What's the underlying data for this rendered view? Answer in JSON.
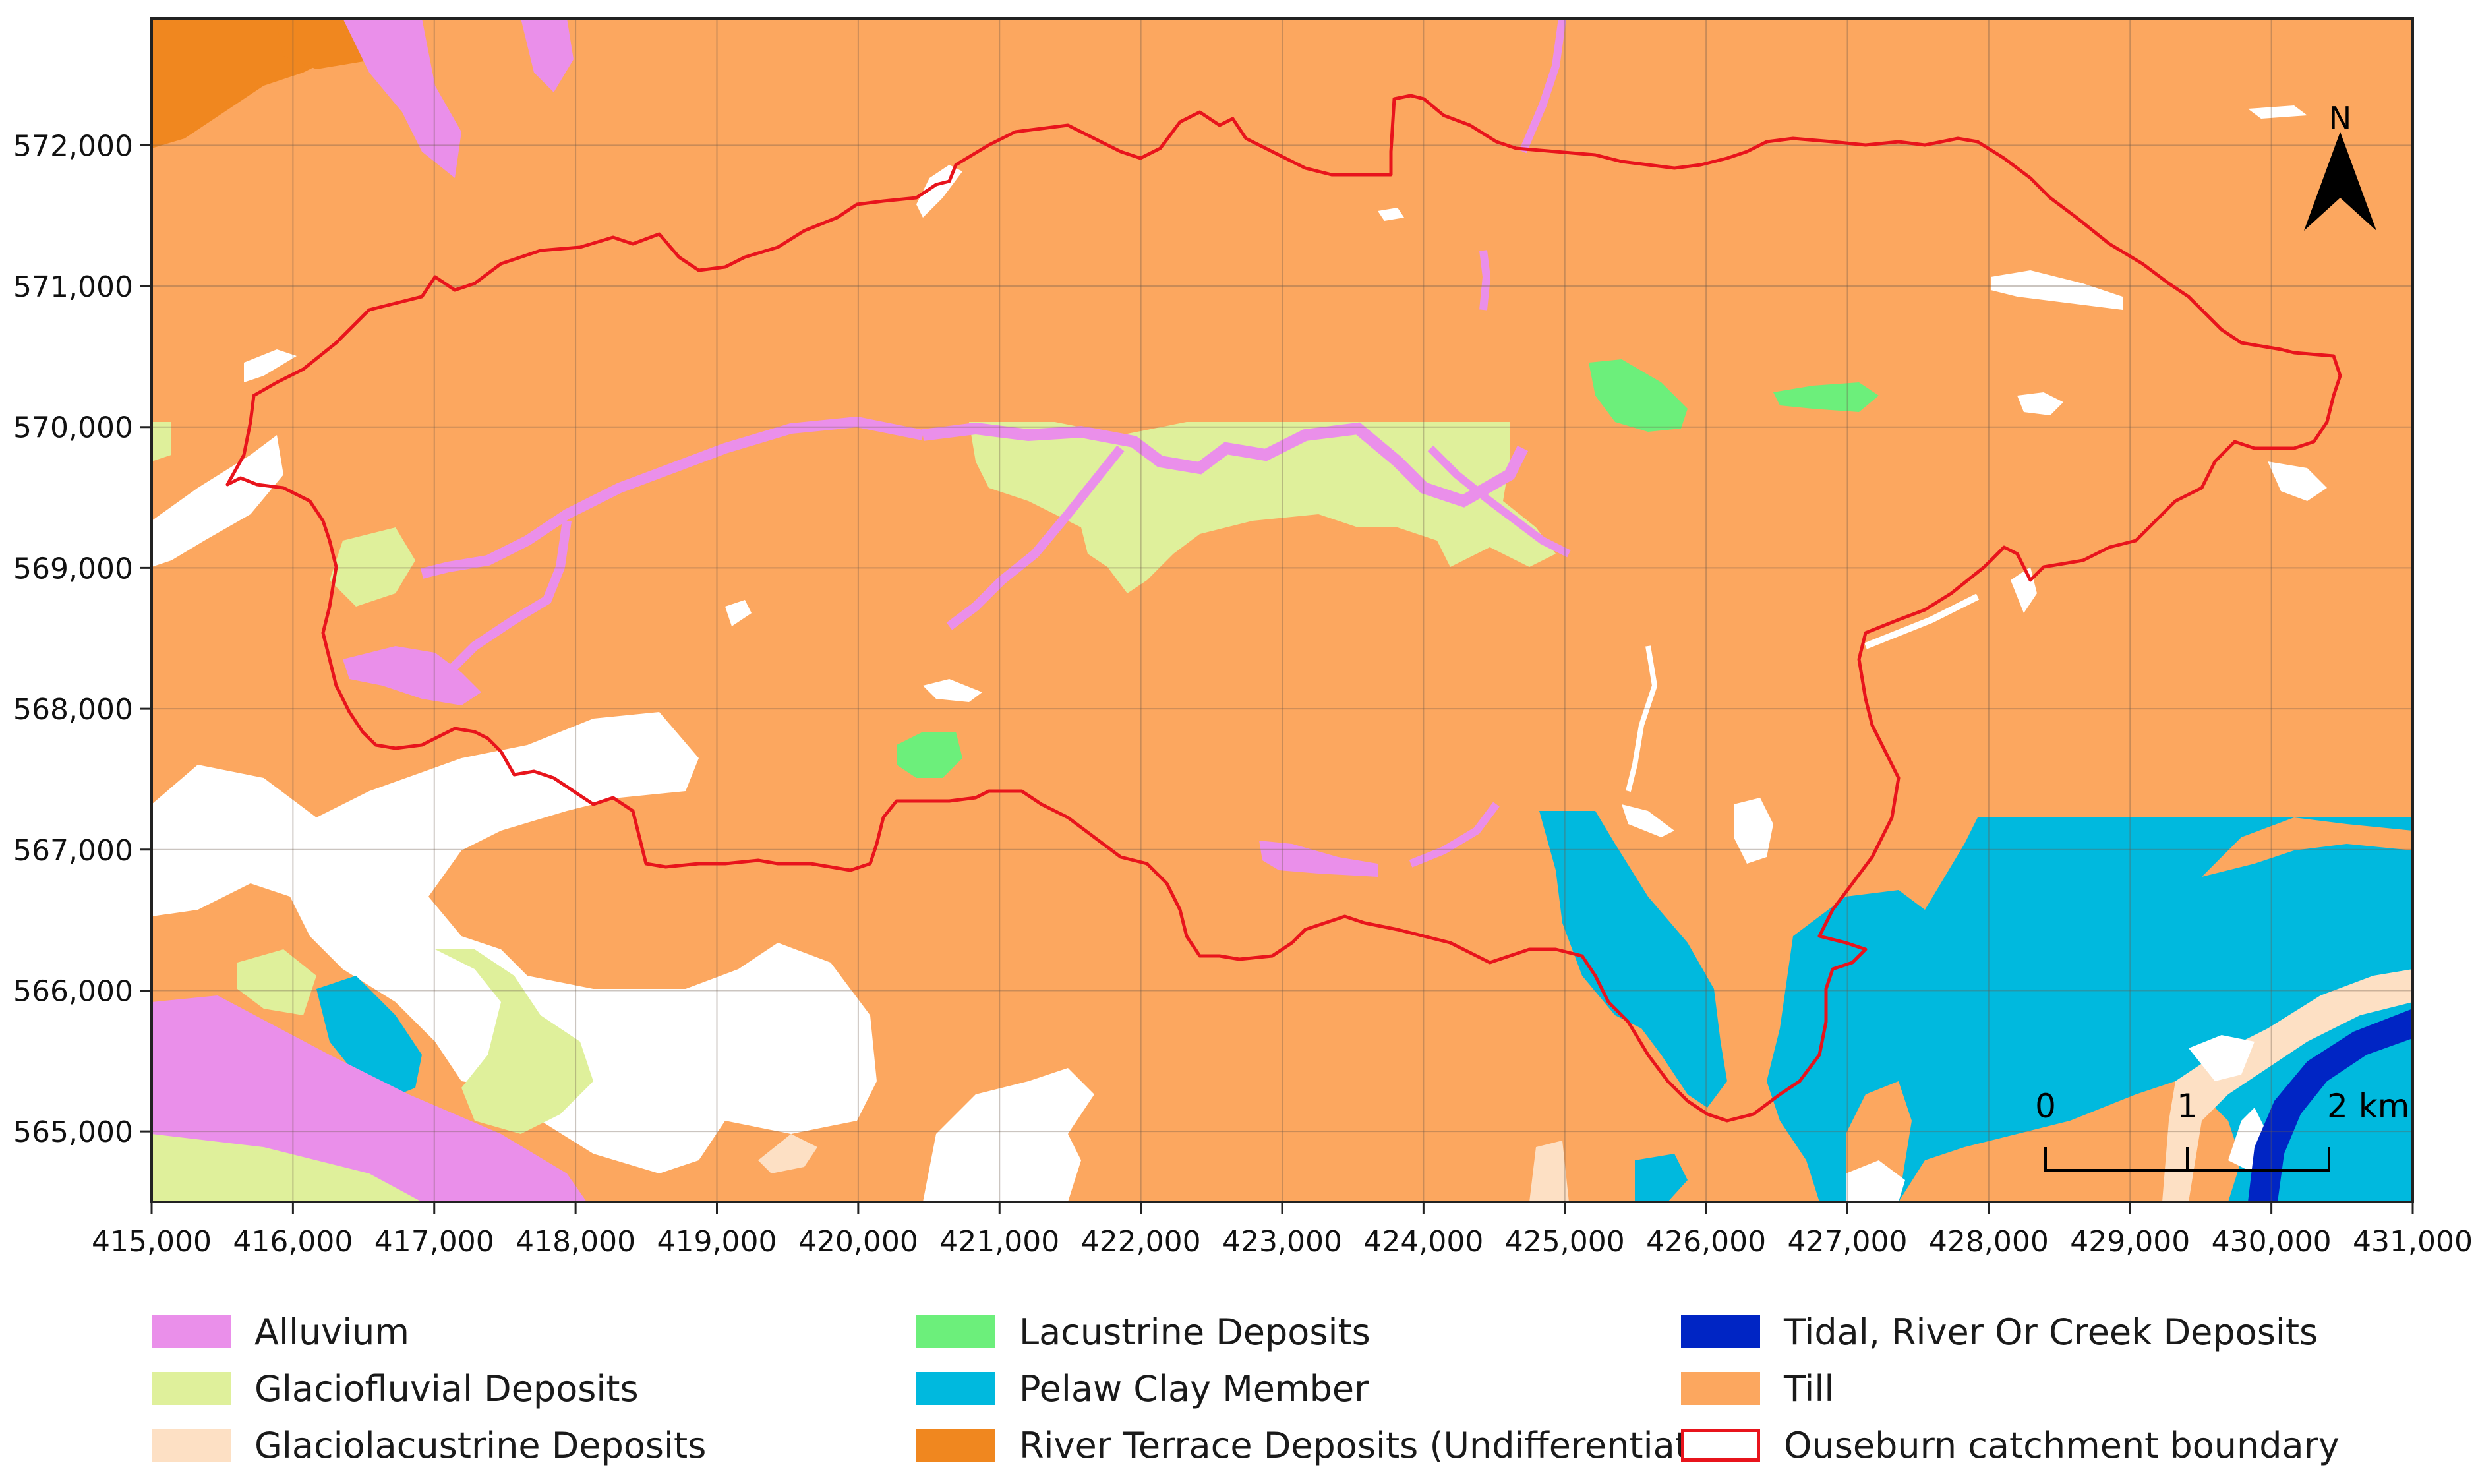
{
  "map": {
    "x_axis": {
      "min": 415000,
      "max": 431000,
      "ticks": [
        "415,000",
        "416,000",
        "417,000",
        "418,000",
        "419,000",
        "420,000",
        "421,000",
        "422,000",
        "423,000",
        "424,000",
        "425,000",
        "426,000",
        "427,000",
        "428,000",
        "429,000",
        "430,000",
        "431,000"
      ]
    },
    "y_axis": {
      "min": 564500,
      "max": 572900,
      "ticks": [
        "565,000",
        "566,000",
        "567,000",
        "568,000",
        "569,000",
        "570,000",
        "571,000",
        "572,000"
      ]
    },
    "north_label": "N",
    "scale_bar": {
      "labels": [
        "0",
        "1",
        "2 km"
      ]
    },
    "colors": {
      "alluvium": "#ea8fea",
      "glaciofluvial": "#dff09b",
      "glaciolacustrine": "#fde0c4",
      "lacustrine": "#6cef7b",
      "pelaw_clay": "#00b9de",
      "river_terrace": "#f0871f",
      "tidal": "#0025c4",
      "till": "#fca75f",
      "boundary": "#e8141c",
      "uncovered": "#ffffff"
    }
  },
  "legend": [
    {
      "label": "Alluvium",
      "color": "#ea8fea",
      "type": "fill"
    },
    {
      "label": "Glaciofluvial Deposits",
      "color": "#dff09b",
      "type": "fill"
    },
    {
      "label": "Glaciolacustrine Deposits",
      "color": "#fde0c4",
      "type": "fill"
    },
    {
      "label": "Lacustrine Deposits",
      "color": "#6cef7b",
      "type": "fill"
    },
    {
      "label": "Pelaw Clay Member",
      "color": "#00b9de",
      "type": "fill"
    },
    {
      "label": "River Terrace Deposits (Undifferentiated)",
      "color": "#f0871f",
      "type": "fill"
    },
    {
      "label": "Tidal, River Or Creek Deposits",
      "color": "#0025c4",
      "type": "fill"
    },
    {
      "label": "Till",
      "color": "#fca75f",
      "type": "fill"
    },
    {
      "label": "Ouseburn catchment boundary",
      "color": "#e8141c",
      "type": "outline"
    }
  ]
}
